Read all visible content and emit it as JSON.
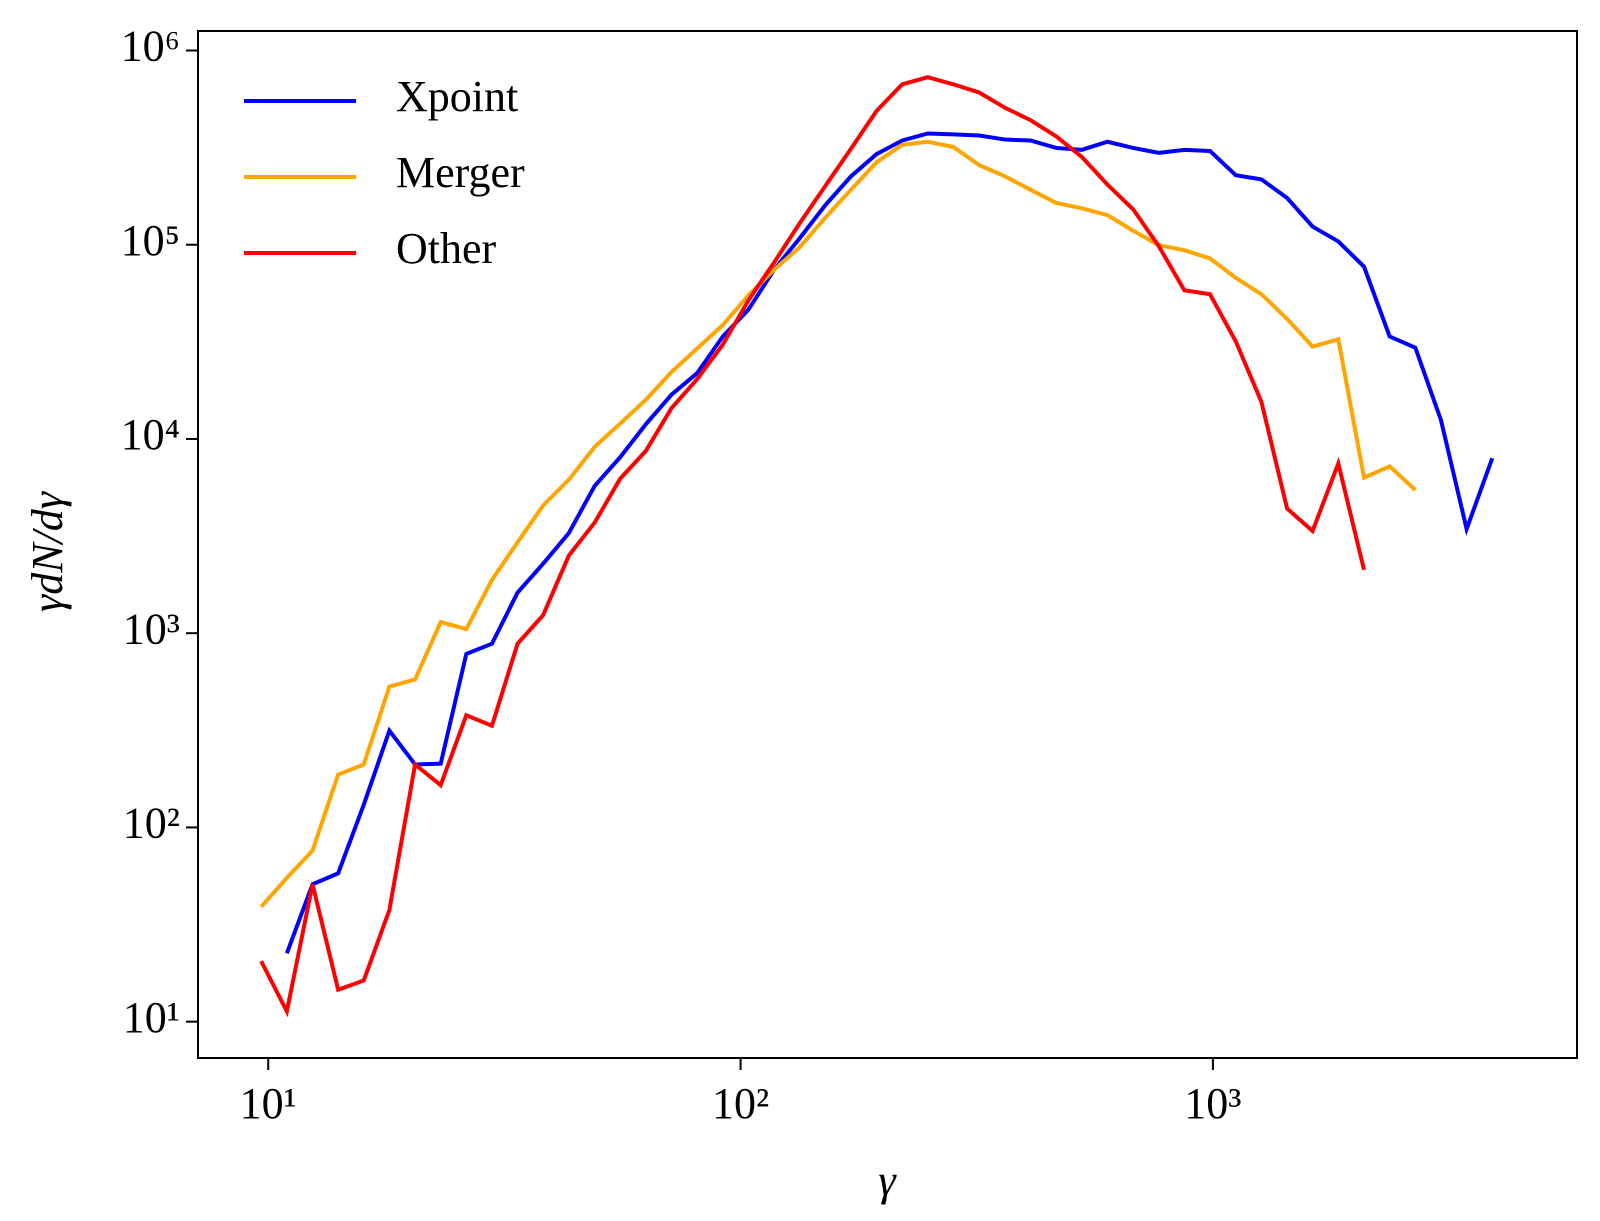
{
  "chart_data": {
    "type": "line",
    "x_label": "γ",
    "y_label": "γdN/dγ",
    "log_x": true,
    "log_y": true,
    "legend": "upper-left",
    "xlim": [
      7.1,
      5900
    ],
    "ylim": [
      6.5,
      1260000
    ],
    "xticks": [
      {
        "value": 10,
        "label": "10¹"
      },
      {
        "value": 100,
        "label": "10²"
      },
      {
        "value": 1000,
        "label": "10³"
      }
    ],
    "yticks": [
      {
        "value": 10,
        "label": "10¹"
      },
      {
        "value": 100,
        "label": "10²"
      },
      {
        "value": 1000,
        "label": "10³"
      },
      {
        "value": 10000,
        "label": "10⁴"
      },
      {
        "value": 100000,
        "label": "10⁵"
      },
      {
        "value": 1000000,
        "label": "10⁶"
      }
    ],
    "x": [
      9.66,
      10.95,
      12.41,
      14.06,
      15.93,
      18.05,
      20.46,
      23.18,
      26.26,
      29.76,
      33.72,
      38.2,
      43.3,
      49.1,
      55.6,
      63.0,
      71.4,
      80.9,
      91.7,
      103.9,
      117.7,
      133.4,
      151.2,
      171.3,
      194.1,
      220,
      249,
      282,
      320,
      363,
      411,
      466,
      528,
      598,
      678,
      768,
      870,
      986,
      1118,
      1267,
      1436,
      1626,
      1843,
      2089,
      2367,
      2683,
      3040,
      3445,
      3904
    ],
    "series": [
      {
        "name": "Xpoint",
        "color": "#0000ff",
        "values": [
          null,
          22.5,
          51,
          58,
          131,
          315,
          211,
          213,
          782,
          883,
          1620,
          2280,
          3280,
          5730,
          8050,
          11900,
          16900,
          21800,
          33700,
          46300,
          74300,
          108000,
          160000,
          225000,
          293000,
          344000,
          374000,
          370000,
          365000,
          348000,
          344000,
          315000,
          308000,
          339000,
          315000,
          297000,
          308000,
          304000,
          228000,
          217000,
          174000,
          124000,
          104000,
          77100,
          33700,
          29500,
          12500,
          3440,
          7960
        ]
      },
      {
        "name": "Merger",
        "color": "#ffa500",
        "values": [
          39,
          55,
          76,
          187,
          211,
          531,
          578,
          1140,
          1050,
          1880,
          2940,
          4550,
          6170,
          9100,
          12000,
          15900,
          22100,
          29200,
          38600,
          54900,
          74300,
          97100,
          138000,
          192000,
          266000,
          327000,
          339000,
          319000,
          257000,
          225000,
          192000,
          164000,
          154000,
          142000,
          118000,
          99500,
          93700,
          85000,
          67500,
          55600,
          41500,
          29900,
          32600,
          6320,
          7230,
          5460,
          null,
          null,
          null
        ]
      },
      {
        "name": "Other",
        "color": "#ff0000",
        "values": [
          20.5,
          11.3,
          51,
          14.6,
          16.3,
          37.6,
          211,
          165,
          378,
          334,
          883,
          1240,
          2510,
          3710,
          6240,
          8670,
          14400,
          20300,
          30600,
          51700,
          80900,
          129000,
          201000,
          312000,
          489000,
          670000,
          729000,
          670000,
          608000,
          507000,
          438000,
          361000,
          283000,
          204000,
          152000,
          98400,
          58300,
          55600,
          31800,
          15500,
          4380,
          3360,
          7480,
          2120,
          null,
          null,
          null,
          null,
          null
        ]
      }
    ]
  }
}
